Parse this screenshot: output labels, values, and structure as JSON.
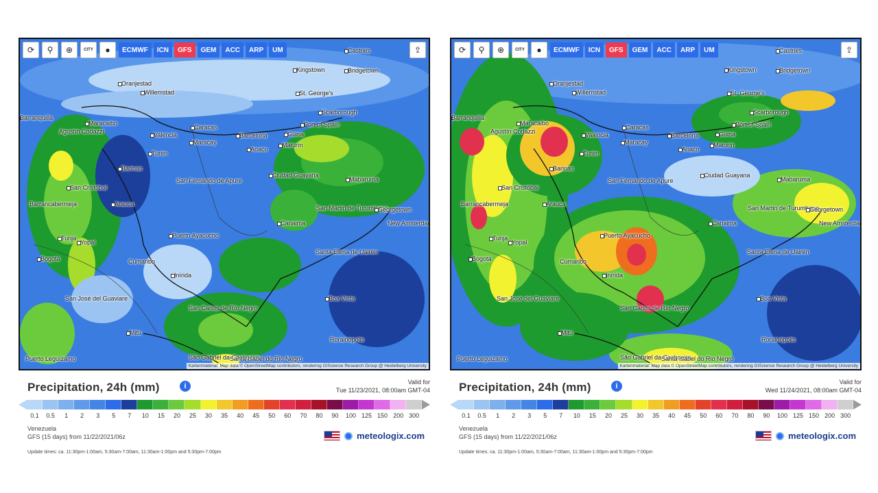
{
  "toolbar": {
    "tools": [
      {
        "name": "refresh-icon",
        "glyph": "⟳"
      },
      {
        "name": "location-pin-icon",
        "glyph": "⚲"
      },
      {
        "name": "zoom-icon",
        "glyph": "⊕"
      },
      {
        "name": "city-toggle-icon",
        "glyph": "CITY"
      },
      {
        "name": "circle-icon",
        "glyph": "●"
      }
    ],
    "models": [
      "ECMWF",
      "ICN",
      "GFS",
      "GEM",
      "ACC",
      "ARP",
      "UM"
    ],
    "active_model": "GFS",
    "share_icon": "share-icon"
  },
  "attribution": "Kartenmaterial: Map data © OpenStreetMap contributors, rendering GIScience Research Group @ Heidelberg University",
  "legend": {
    "values": [
      "0.1",
      "0.5",
      "1",
      "2",
      "3",
      "5",
      "7",
      "10",
      "15",
      "20",
      "25",
      "30",
      "35",
      "40",
      "45",
      "50",
      "60",
      "70",
      "80",
      "90",
      "100",
      "125",
      "150",
      "200",
      "300"
    ],
    "colors": [
      "#b9d7f7",
      "#9cc4f2",
      "#7fb0ee",
      "#5f9aea",
      "#4585e3",
      "#2d6ce8",
      "#1c3f9c",
      "#1e9b2e",
      "#3ab23a",
      "#6ccb3c",
      "#a6dd2c",
      "#f3f230",
      "#f3c72b",
      "#f19c22",
      "#ee6d1f",
      "#e4432b",
      "#e2304f",
      "#d11f3d",
      "#a81228",
      "#7a0c4a",
      "#9c1ca8",
      "#c537d1",
      "#e06be6",
      "#f0b2f0",
      "#cfcfcf"
    ]
  },
  "panels": [
    {
      "title": "Precipitation, 24h (mm)",
      "valid_label": "Valid for",
      "valid_time": "Tue 11/23/2021, 08:00am GMT-04",
      "region": "Venezuela",
      "model_run": "GFS (15 days) from 11/22/2021/06z",
      "update_times": "Update times: ca. 11:30pm-1:00am, 5:30am-7:00am, 11:30am-1:00pm and 5:30pm-7:00pm",
      "brand": "meteologix.com"
    },
    {
      "title": "Precipitation, 24h (mm)",
      "valid_label": "Valid for",
      "valid_time": "Wed 11/24/2021, 08:00am GMT-04",
      "region": "Venezuela",
      "model_run": "GFS (15 days) from 11/22/2021/06z",
      "update_times": "Update times: ca. 11:30pm-1:00am, 5:30am-7:00am, 11:30am-1:00pm and 5:30pm-7:00pm",
      "brand": "meteologix.com"
    }
  ],
  "places": [
    "Castries",
    "Kingstown",
    "Bridgetown",
    "Oranjestad",
    "Willemstad",
    "St. George's",
    "Scarborough",
    "Barranquilla",
    "Maracaibo",
    "Port of Spain",
    "Caracas",
    "Valencia",
    "Maracay",
    "Barcelona",
    "Güiria",
    "Agustín Codazzi",
    "Anaco",
    "Maturín",
    "Turén",
    "Barinas",
    "San Fernando de Apure",
    "Ciudad Guayana",
    "Mabaruma",
    "San Cristóbal",
    "Barrancabermeja",
    "Arauca",
    "San Martin de Turumbang",
    "Georgetown",
    "New Amsterdam",
    "Canaima",
    "Tunja",
    "Yopal",
    "Puerto Ayacucho",
    "Santa Elena de Uairén",
    "Bogotá",
    "Cumaribo",
    "Inírida",
    "Boa Vista",
    "San José del Guaviare",
    "San Carlos de Río Negro",
    "Mitú",
    "Rorainópolis",
    "Puerto Leguízamo",
    "São Gabriel da Cachoeira",
    "Santa Isabel do Rio Negro"
  ]
}
